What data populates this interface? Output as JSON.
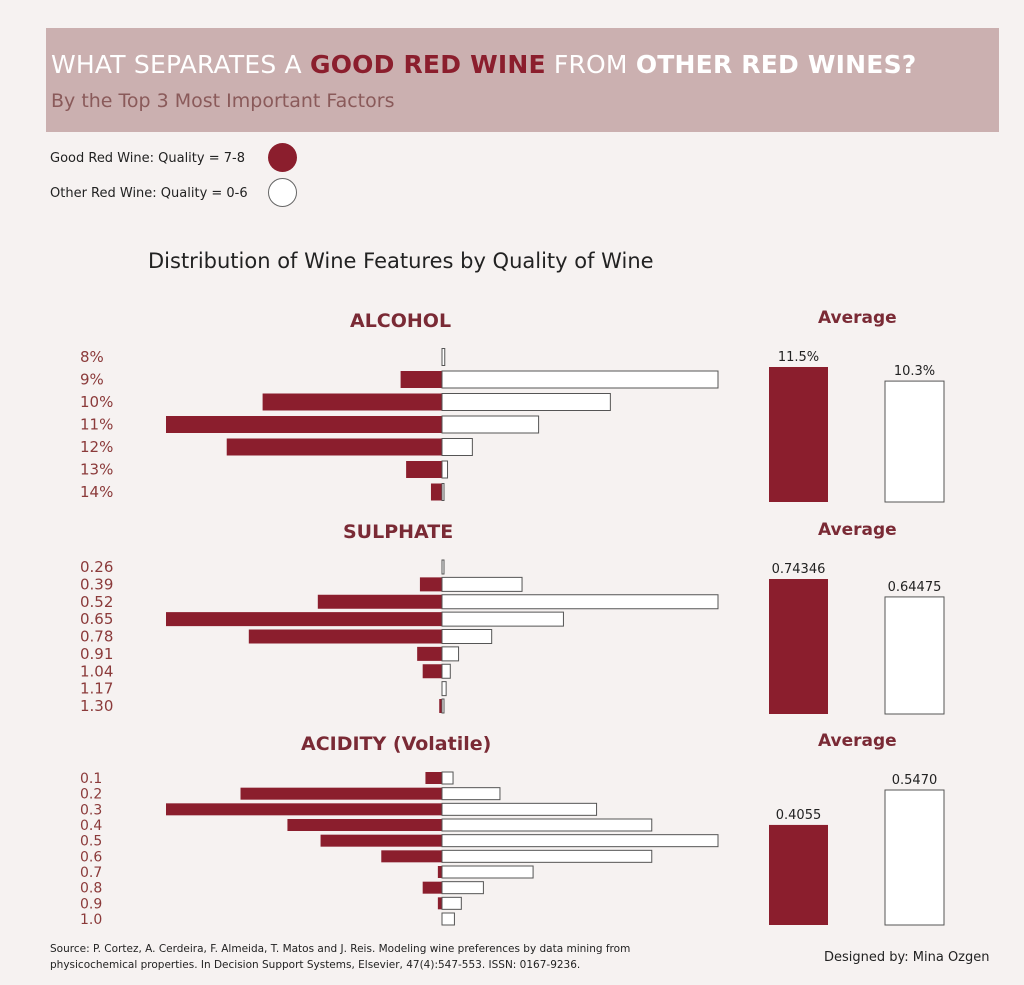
{
  "header": {
    "title_part1": "WHAT SEPARATES A ",
    "title_good": "GOOD RED WINE",
    "title_part2": " FROM ",
    "title_other": "OTHER RED WINES?",
    "subtitle": "By the Top 3 Most Important Factors"
  },
  "legend": {
    "good_label": "Good Red Wine: Quality = 7-8",
    "other_label": "Other Red Wine: Quality = 0-6"
  },
  "colors": {
    "good": "#8b1e2d",
    "other": "#ffffff",
    "outline": "#555555",
    "label": "#8b3a3a",
    "banner": "#cbb0b0",
    "background": "#f6f2f1"
  },
  "main_title": "Distribution of Wine Features by Quality of Wine",
  "average_title": "Average",
  "chart_data": [
    {
      "type": "bar",
      "orientation": "horizontal-butterfly",
      "title": "ALCOHOL",
      "categories": [
        "8%",
        "9%",
        "10%",
        "11%",
        "12%",
        "13%",
        "14%"
      ],
      "series": [
        {
          "name": "Good Red Wine: Quality = 7-8",
          "values": [
            0,
            15,
            65,
            100,
            78,
            13,
            4
          ]
        },
        {
          "name": "Other Red Wine: Quality = 0-6",
          "values": [
            1,
            100,
            61,
            35,
            11,
            2,
            0.5
          ]
        }
      ],
      "average": {
        "good": 11.5,
        "other": 10.3,
        "good_label": "11.5%",
        "other_label": "10.3%",
        "ylim": [
          0,
          12
        ]
      }
    },
    {
      "type": "bar",
      "orientation": "horizontal-butterfly",
      "title": "SULPHATE",
      "categories": [
        "0.26",
        "0.39",
        "0.52",
        "0.65",
        "0.78",
        "0.91",
        "1.04",
        "1.17",
        "1.30"
      ],
      "series": [
        {
          "name": "Good Red Wine: Quality = 7-8",
          "values": [
            0,
            8,
            45,
            100,
            70,
            9,
            7,
            0,
            1
          ]
        },
        {
          "name": "Other Red Wine: Quality = 0-6",
          "values": [
            0.5,
            29,
            100,
            44,
            18,
            6,
            3,
            1.5,
            0.5
          ]
        }
      ],
      "average": {
        "good": 0.74346,
        "other": 0.64475,
        "good_label": "0.74346",
        "other_label": "0.64475",
        "ylim": [
          0,
          0.8
        ]
      }
    },
    {
      "type": "bar",
      "orientation": "horizontal-butterfly",
      "title": "ACIDITY (Volatile)",
      "categories": [
        "0.1",
        "0.2",
        "0.3",
        "0.4",
        "0.5",
        "0.6",
        "0.7",
        "0.8",
        "0.9",
        "1.0"
      ],
      "series": [
        {
          "name": "Good Red Wine: Quality = 7-8",
          "values": [
            6,
            73,
            100,
            56,
            44,
            22,
            1.5,
            7,
            1.5,
            0
          ]
        },
        {
          "name": "Other Red Wine: Quality = 0-6",
          "values": [
            4,
            21,
            56,
            76,
            100,
            76,
            33,
            15,
            7,
            4.5
          ]
        }
      ],
      "average": {
        "good": 0.4055,
        "other": 0.547,
        "good_label": "0.4055",
        "other_label": "0.5470",
        "ylim": [
          0,
          0.55
        ]
      }
    }
  ],
  "footer": {
    "source_line1": "Source: P. Cortez, A. Cerdeira, F. Almeida, T. Matos and J. Reis. Modeling wine preferences by data mining from",
    "source_line2": "physicochemical properties. In Decision Support Systems, Elsevier, 47(4):547-553. ISSN: 0167-9236.",
    "designer": "Designed by: Mina Ozgen"
  }
}
